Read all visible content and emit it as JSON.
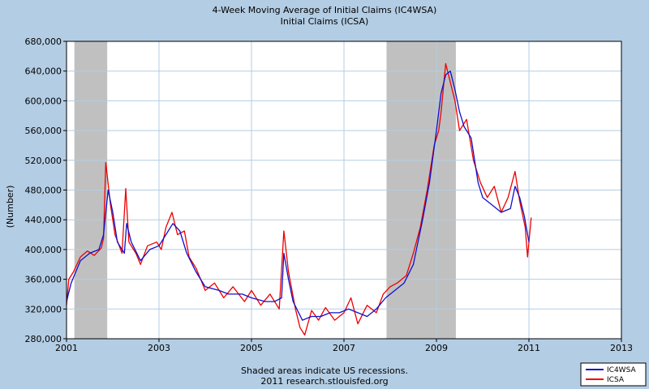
{
  "chart_data": {
    "type": "line",
    "title": "4-Week Moving Average of Initial Claims (IC4WSA)",
    "subtitle": "Initial Claims (ICSA)",
    "ylabel": "(Number)",
    "xlabel": "",
    "footer_line1": "Shaded areas indicate US recessions.",
    "footer_line2": "2011 research.stlouisfed.org",
    "xlim": [
      2001.0,
      2013.0
    ],
    "ylim": [
      280000,
      680000
    ],
    "x_ticks": [
      2001,
      2003,
      2005,
      2007,
      2009,
      2011,
      2013
    ],
    "x_tick_labels": [
      "2001",
      "2003",
      "2005",
      "2007",
      "2009",
      "2011",
      "2013"
    ],
    "y_ticks": [
      280000,
      320000,
      360000,
      400000,
      440000,
      480000,
      520000,
      560000,
      600000,
      640000,
      680000
    ],
    "y_tick_labels": [
      "280,000",
      "320,000",
      "360,000",
      "400,000",
      "440,000",
      "480,000",
      "520,000",
      "560,000",
      "600,000",
      "640,000",
      "680,000"
    ],
    "grid": true,
    "legend_position": "bottom-right",
    "recessions": [
      [
        2001.17,
        2001.88
      ],
      [
        2007.92,
        2009.42
      ]
    ],
    "colors": {
      "background": "#b3cde4",
      "plot_background": "#ffffff",
      "recession": "#c0c0c0",
      "grid": "#b3cde4",
      "ic4wsa": "#1010cc",
      "icsa": "#ee0000"
    },
    "series": [
      {
        "name": "IC4WSA",
        "color": "#1010cc",
        "points": [
          [
            2001.0,
            330000
          ],
          [
            2001.1,
            355000
          ],
          [
            2001.3,
            385000
          ],
          [
            2001.5,
            395000
          ],
          [
            2001.7,
            400000
          ],
          [
            2001.8,
            420000
          ],
          [
            2001.9,
            480000
          ],
          [
            2002.0,
            450000
          ],
          [
            2002.1,
            410000
          ],
          [
            2002.25,
            395000
          ],
          [
            2002.3,
            435000
          ],
          [
            2002.4,
            410000
          ],
          [
            2002.6,
            385000
          ],
          [
            2002.8,
            400000
          ],
          [
            2003.0,
            405000
          ],
          [
            2003.1,
            415000
          ],
          [
            2003.2,
            425000
          ],
          [
            2003.3,
            435000
          ],
          [
            2003.45,
            425000
          ],
          [
            2003.6,
            395000
          ],
          [
            2003.8,
            370000
          ],
          [
            2004.0,
            350000
          ],
          [
            2004.3,
            345000
          ],
          [
            2004.5,
            340000
          ],
          [
            2004.8,
            340000
          ],
          [
            2005.0,
            335000
          ],
          [
            2005.3,
            330000
          ],
          [
            2005.5,
            330000
          ],
          [
            2005.65,
            335000
          ],
          [
            2005.7,
            395000
          ],
          [
            2005.8,
            360000
          ],
          [
            2005.9,
            330000
          ],
          [
            2006.1,
            305000
          ],
          [
            2006.3,
            310000
          ],
          [
            2006.5,
            310000
          ],
          [
            2006.7,
            315000
          ],
          [
            2006.9,
            315000
          ],
          [
            2007.1,
            320000
          ],
          [
            2007.3,
            315000
          ],
          [
            2007.5,
            310000
          ],
          [
            2007.7,
            320000
          ],
          [
            2007.9,
            335000
          ],
          [
            2008.1,
            345000
          ],
          [
            2008.3,
            355000
          ],
          [
            2008.5,
            380000
          ],
          [
            2008.7,
            440000
          ],
          [
            2008.85,
            490000
          ],
          [
            2009.0,
            560000
          ],
          [
            2009.1,
            610000
          ],
          [
            2009.2,
            635000
          ],
          [
            2009.3,
            640000
          ],
          [
            2009.4,
            615000
          ],
          [
            2009.5,
            585000
          ],
          [
            2009.6,
            565000
          ],
          [
            2009.75,
            550000
          ],
          [
            2009.9,
            490000
          ],
          [
            2010.0,
            470000
          ],
          [
            2010.2,
            460000
          ],
          [
            2010.4,
            450000
          ],
          [
            2010.6,
            455000
          ],
          [
            2010.7,
            485000
          ],
          [
            2010.8,
            470000
          ],
          [
            2010.9,
            445000
          ],
          [
            2011.0,
            410000
          ]
        ]
      },
      {
        "name": "ICSA",
        "color": "#ee0000",
        "points": [
          [
            2001.0,
            325000
          ],
          [
            2001.05,
            360000
          ],
          [
            2001.15,
            370000
          ],
          [
            2001.3,
            390000
          ],
          [
            2001.45,
            398000
          ],
          [
            2001.6,
            392000
          ],
          [
            2001.75,
            402000
          ],
          [
            2001.8,
            415000
          ],
          [
            2001.85,
            517000
          ],
          [
            2001.95,
            460000
          ],
          [
            2002.05,
            420000
          ],
          [
            2002.2,
            395000
          ],
          [
            2002.28,
            482000
          ],
          [
            2002.35,
            410000
          ],
          [
            2002.5,
            395000
          ],
          [
            2002.6,
            380000
          ],
          [
            2002.75,
            405000
          ],
          [
            2002.95,
            410000
          ],
          [
            2003.05,
            400000
          ],
          [
            2003.15,
            430000
          ],
          [
            2003.28,
            450000
          ],
          [
            2003.4,
            420000
          ],
          [
            2003.55,
            425000
          ],
          [
            2003.65,
            390000
          ],
          [
            2003.8,
            375000
          ],
          [
            2004.0,
            345000
          ],
          [
            2004.2,
            355000
          ],
          [
            2004.4,
            335000
          ],
          [
            2004.6,
            350000
          ],
          [
            2004.85,
            330000
          ],
          [
            2005.0,
            345000
          ],
          [
            2005.2,
            325000
          ],
          [
            2005.4,
            340000
          ],
          [
            2005.6,
            320000
          ],
          [
            2005.7,
            425000
          ],
          [
            2005.8,
            370000
          ],
          [
            2005.95,
            320000
          ],
          [
            2006.05,
            295000
          ],
          [
            2006.15,
            285000
          ],
          [
            2006.3,
            318000
          ],
          [
            2006.45,
            305000
          ],
          [
            2006.6,
            322000
          ],
          [
            2006.8,
            305000
          ],
          [
            2007.0,
            315000
          ],
          [
            2007.15,
            335000
          ],
          [
            2007.3,
            300000
          ],
          [
            2007.5,
            325000
          ],
          [
            2007.7,
            315000
          ],
          [
            2007.85,
            340000
          ],
          [
            2008.0,
            350000
          ],
          [
            2008.15,
            355000
          ],
          [
            2008.35,
            365000
          ],
          [
            2008.5,
            395000
          ],
          [
            2008.65,
            430000
          ],
          [
            2008.8,
            480000
          ],
          [
            2008.95,
            540000
          ],
          [
            2009.05,
            560000
          ],
          [
            2009.1,
            585000
          ],
          [
            2009.2,
            650000
          ],
          [
            2009.3,
            625000
          ],
          [
            2009.4,
            600000
          ],
          [
            2009.5,
            560000
          ],
          [
            2009.65,
            575000
          ],
          [
            2009.8,
            520000
          ],
          [
            2009.95,
            490000
          ],
          [
            2010.1,
            470000
          ],
          [
            2010.25,
            485000
          ],
          [
            2010.4,
            450000
          ],
          [
            2010.55,
            470000
          ],
          [
            2010.7,
            505000
          ],
          [
            2010.8,
            465000
          ],
          [
            2010.92,
            430000
          ],
          [
            2010.97,
            390000
          ],
          [
            2011.05,
            443000
          ]
        ]
      }
    ]
  }
}
